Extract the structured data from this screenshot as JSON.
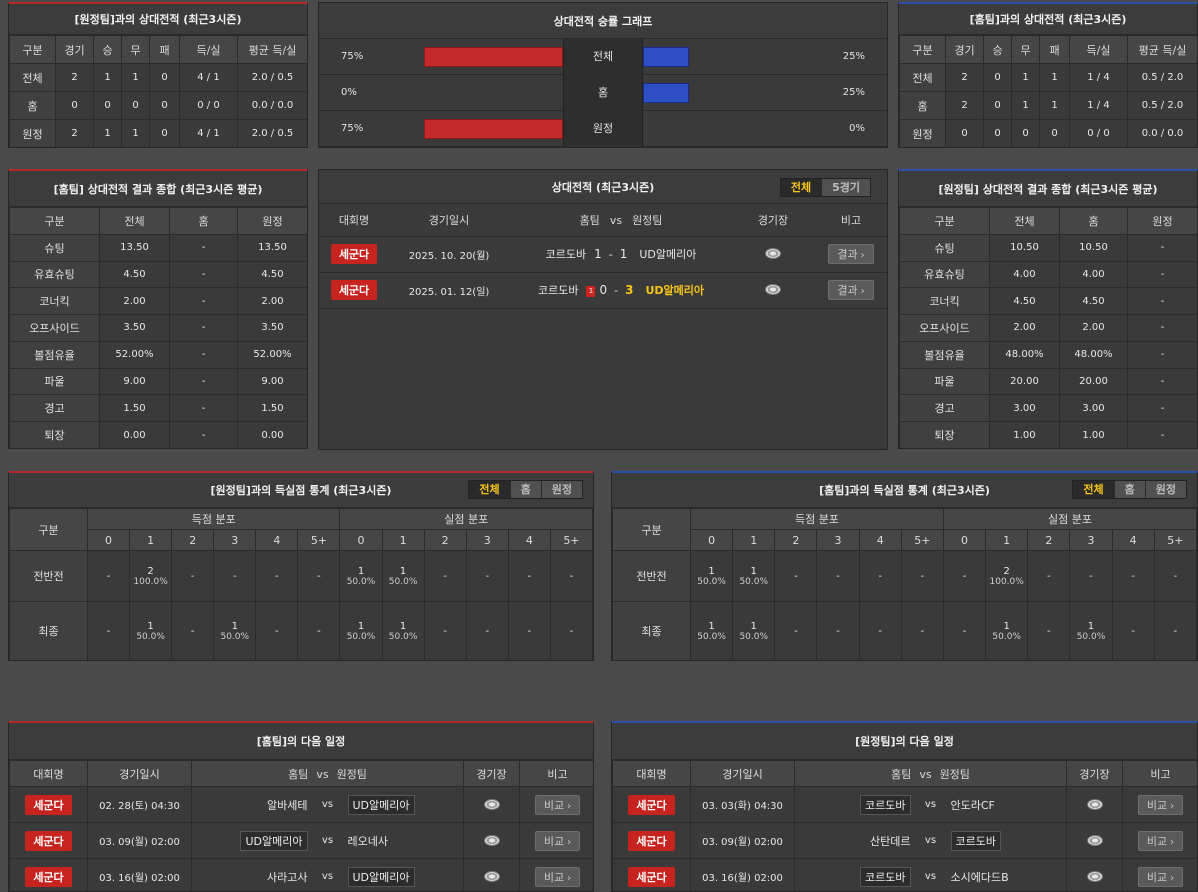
{
  "h2h_away": {
    "title": "[원정팀]과의 상대전적 (최근3시즌)",
    "headers": [
      "구분",
      "경기",
      "승",
      "무",
      "패",
      "득/실",
      "평균 득/실"
    ],
    "rows": [
      [
        "전체",
        "2",
        "1",
        "1",
        "0",
        "4 / 1",
        "2.0 / 0.5"
      ],
      [
        "홈",
        "0",
        "0",
        "0",
        "0",
        "0 / 0",
        "0.0 / 0.0"
      ],
      [
        "원정",
        "2",
        "1",
        "1",
        "0",
        "4 / 1",
        "2.0 / 0.5"
      ]
    ]
  },
  "win_graph": {
    "title": "상대전적 승률 그래프",
    "rows": [
      {
        "left": "75%",
        "label": "전체",
        "right": "25%",
        "left_frac": 0.75,
        "right_frac": 0.25
      },
      {
        "left": "0%",
        "label": "홈",
        "right": "25%",
        "left_frac": 0.0,
        "right_frac": 0.25
      },
      {
        "left": "75%",
        "label": "원정",
        "right": "0%",
        "left_frac": 0.75,
        "right_frac": 0.0
      }
    ],
    "colors": {
      "home": "#c42a2a",
      "away": "#2c4fc4"
    }
  },
  "h2h_home": {
    "title": "[홈팀]과의 상대전적 (최근3시즌)",
    "headers": [
      "구분",
      "경기",
      "승",
      "무",
      "패",
      "득/실",
      "평균 득/실"
    ],
    "rows": [
      [
        "전체",
        "2",
        "0",
        "1",
        "1",
        "1 / 4",
        "0.5 / 2.0"
      ],
      [
        "홈",
        "2",
        "0",
        "1",
        "1",
        "1 / 4",
        "0.5 / 2.0"
      ],
      [
        "원정",
        "0",
        "0",
        "0",
        "0",
        "0 / 0",
        "0.0 / 0.0"
      ]
    ]
  },
  "home_summary": {
    "title": "[홈팀] 상대전적 결과 종합 (최근3시즌 평균)",
    "headers": [
      "구분",
      "전체",
      "홈",
      "원정"
    ],
    "rows": [
      [
        "슈팅",
        "13.50",
        "-",
        "13.50"
      ],
      [
        "유효슈팅",
        "4.50",
        "-",
        "4.50"
      ],
      [
        "코너킥",
        "2.00",
        "-",
        "2.00"
      ],
      [
        "오프사이드",
        "3.50",
        "-",
        "3.50"
      ],
      [
        "볼점유율",
        "52.00%",
        "-",
        "52.00%"
      ],
      [
        "파울",
        "9.00",
        "-",
        "9.00"
      ],
      [
        "경고",
        "1.50",
        "-",
        "1.50"
      ],
      [
        "퇴장",
        "0.00",
        "-",
        "0.00"
      ]
    ]
  },
  "h2h_list": {
    "title": "상대전적 (최근3시즌)",
    "tabs": [
      "전체",
      "5경기"
    ],
    "headers": {
      "league": "대회명",
      "date": "경기일시",
      "home": "홈팀",
      "vs": "vs",
      "away": "원정팀",
      "venue": "경기장",
      "note": "비고"
    },
    "matches": [
      {
        "league": "세군다",
        "date": "2025. 10. 20(월)",
        "home": "코르도바",
        "home_score": "1",
        "dash": "-",
        "away_score": "1",
        "away": "UD알메리아",
        "btn": "결과"
      },
      {
        "league": "세군다",
        "date": "2025. 01. 12(일)",
        "home": "코르도바",
        "card": "1",
        "home_score": "0",
        "dash": "-",
        "away_score": "3",
        "away": "UD알메리아",
        "btn": "결과"
      }
    ]
  },
  "away_summary": {
    "title": "[원정팀] 상대전적 결과 종합 (최근3시즌 평균)",
    "headers": [
      "구분",
      "전체",
      "홈",
      "원정"
    ],
    "rows": [
      [
        "슈팅",
        "10.50",
        "10.50",
        "-"
      ],
      [
        "유효슈팅",
        "4.00",
        "4.00",
        "-"
      ],
      [
        "코너킥",
        "4.50",
        "4.50",
        "-"
      ],
      [
        "오프사이드",
        "2.00",
        "2.00",
        "-"
      ],
      [
        "볼점유율",
        "48.00%",
        "48.00%",
        "-"
      ],
      [
        "파울",
        "20.00",
        "20.00",
        "-"
      ],
      [
        "경고",
        "3.00",
        "3.00",
        "-"
      ],
      [
        "퇴장",
        "1.00",
        "1.00",
        "-"
      ]
    ]
  },
  "goal_stats_home": {
    "title": "[원정팀]과의 득실점 통계 (최근3시즌)",
    "tabs": [
      "전체",
      "홈",
      "원정"
    ],
    "col_label": "구분",
    "group_scored": "득점 분포",
    "group_conceded": "실점 분포",
    "buckets": [
      "0",
      "1",
      "2",
      "3",
      "4",
      "5+"
    ],
    "rows": [
      {
        "label": "전반전",
        "cells": [
          [
            "-",
            ""
          ],
          [
            "2",
            "100.0%"
          ],
          [
            "-",
            ""
          ],
          [
            "-",
            ""
          ],
          [
            "-",
            ""
          ],
          [
            "-",
            ""
          ],
          [
            "1",
            "50.0%"
          ],
          [
            "1",
            "50.0%"
          ],
          [
            "-",
            ""
          ],
          [
            "-",
            ""
          ],
          [
            "-",
            ""
          ],
          [
            "-",
            ""
          ]
        ]
      },
      {
        "label": "최종",
        "cells": [
          [
            "-",
            ""
          ],
          [
            "1",
            "50.0%"
          ],
          [
            "-",
            ""
          ],
          [
            "1",
            "50.0%"
          ],
          [
            "-",
            ""
          ],
          [
            "-",
            ""
          ],
          [
            "1",
            "50.0%"
          ],
          [
            "1",
            "50.0%"
          ],
          [
            "-",
            ""
          ],
          [
            "-",
            ""
          ],
          [
            "-",
            ""
          ],
          [
            "-",
            ""
          ]
        ]
      }
    ]
  },
  "goal_stats_away": {
    "title": "[홈팀]과의 득실점 통계 (최근3시즌)",
    "tabs": [
      "전체",
      "홈",
      "원정"
    ],
    "col_label": "구분",
    "group_scored": "득점 분포",
    "group_conceded": "실점 분포",
    "buckets": [
      "0",
      "1",
      "2",
      "3",
      "4",
      "5+"
    ],
    "rows": [
      {
        "label": "전반전",
        "cells": [
          [
            "1",
            "50.0%"
          ],
          [
            "1",
            "50.0%"
          ],
          [
            "-",
            ""
          ],
          [
            "-",
            ""
          ],
          [
            "-",
            ""
          ],
          [
            "-",
            ""
          ],
          [
            "-",
            ""
          ],
          [
            "2",
            "100.0%"
          ],
          [
            "-",
            ""
          ],
          [
            "-",
            ""
          ],
          [
            "-",
            ""
          ],
          [
            "-",
            ""
          ]
        ]
      },
      {
        "label": "최종",
        "cells": [
          [
            "1",
            "50.0%"
          ],
          [
            "1",
            "50.0%"
          ],
          [
            "-",
            ""
          ],
          [
            "-",
            ""
          ],
          [
            "-",
            ""
          ],
          [
            "-",
            ""
          ],
          [
            "-",
            ""
          ],
          [
            "1",
            "50.0%"
          ],
          [
            "-",
            ""
          ],
          [
            "1",
            "50.0%"
          ],
          [
            "-",
            ""
          ],
          [
            "-",
            ""
          ]
        ]
      }
    ]
  },
  "next_home": {
    "title": "[홈팀]의 다음 일정",
    "headers": {
      "league": "대회명",
      "date": "경기일시",
      "home": "홈팀",
      "vs": "vs",
      "away": "원정팀",
      "venue": "경기장",
      "note": "비고"
    },
    "matches": [
      {
        "league": "세군다",
        "date": "02. 28(토) 04:30",
        "home": "알바세테",
        "vs": "vs",
        "away": "UD알메리아",
        "boxed": "away",
        "btn": "비교"
      },
      {
        "league": "세군다",
        "date": "03. 09(월) 02:00",
        "home": "UD알메리아",
        "vs": "vs",
        "away": "레오네사",
        "boxed": "home",
        "btn": "비교"
      },
      {
        "league": "세군다",
        "date": "03. 16(월) 02:00",
        "home": "사라고사",
        "vs": "vs",
        "away": "UD알메리아",
        "boxed": "away",
        "btn": "비교"
      }
    ]
  },
  "next_away": {
    "title": "[원정팀]의 다음 일정",
    "headers": {
      "league": "대회명",
      "date": "경기일시",
      "home": "홈팀",
      "vs": "vs",
      "away": "원정팀",
      "venue": "경기장",
      "note": "비고"
    },
    "matches": [
      {
        "league": "세군다",
        "date": "03. 03(화) 04:30",
        "home": "코르도바",
        "vs": "vs",
        "away": "안도라CF",
        "boxed": "home",
        "btn": "비교"
      },
      {
        "league": "세군다",
        "date": "03. 09(월) 02:00",
        "home": "산탄데르",
        "vs": "vs",
        "away": "코르도바",
        "boxed": "away",
        "btn": "비교"
      },
      {
        "league": "세군다",
        "date": "03. 16(월) 02:00",
        "home": "코르도바",
        "vs": "vs",
        "away": "소시에다드B",
        "boxed": "home",
        "btn": "비교"
      }
    ]
  }
}
